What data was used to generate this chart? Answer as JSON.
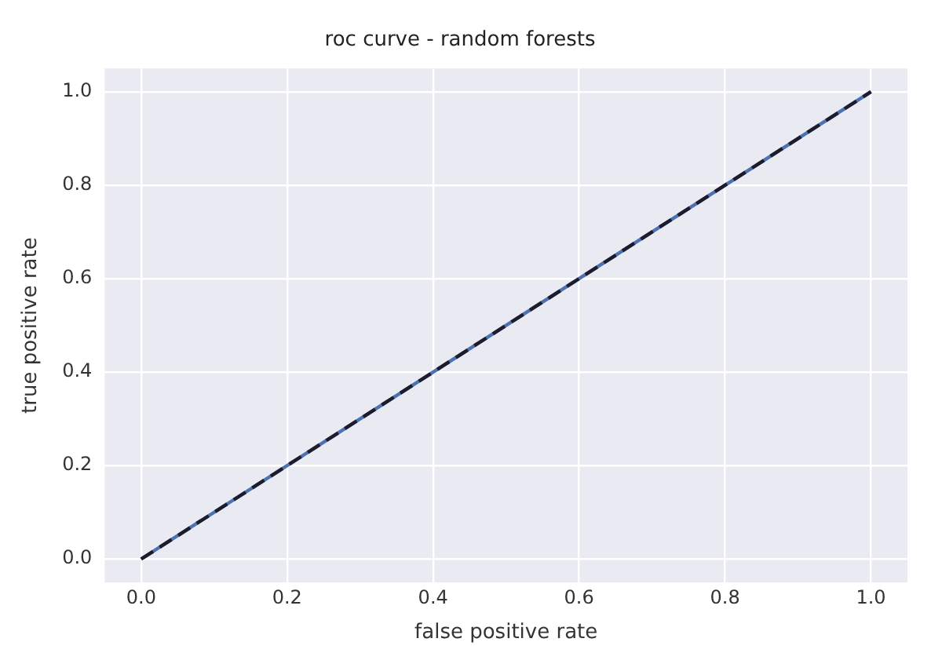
{
  "chart_data": {
    "type": "line",
    "title": "roc curve - random forests",
    "xlabel": "false positive rate",
    "ylabel": "true positive rate",
    "series": [
      {
        "color": "#4c72b0",
        "values": [
          0,
          1
        ],
        "line_style": "solid"
      },
      {
        "color": "#1c1c2c",
        "values": [
          0,
          1
        ],
        "line_style": "dashed"
      }
    ],
    "x": [
      0,
      1
    ],
    "xlim": [
      -0.05,
      1.05
    ],
    "ylim": [
      -0.05,
      1.05
    ],
    "xticks": [
      {
        "value": 0,
        "label": "0.0"
      },
      {
        "value": 0.2,
        "label": "0.2"
      },
      {
        "value": 0.4,
        "label": "0.4"
      },
      {
        "value": 0.6,
        "label": "0.6"
      },
      {
        "value": 0.8,
        "label": "0.8"
      },
      {
        "value": 1,
        "label": "1.0"
      }
    ],
    "yticks": [
      {
        "value": 0,
        "label": "0.0"
      },
      {
        "value": 0.2,
        "label": "0.2"
      },
      {
        "value": 0.4,
        "label": "0.4"
      },
      {
        "value": 0.6,
        "label": "0.6"
      },
      {
        "value": 0.8,
        "label": "0.8"
      },
      {
        "value": 1,
        "label": "1.0"
      }
    ],
    "grid": true,
    "legend": false,
    "marker": "none"
  }
}
